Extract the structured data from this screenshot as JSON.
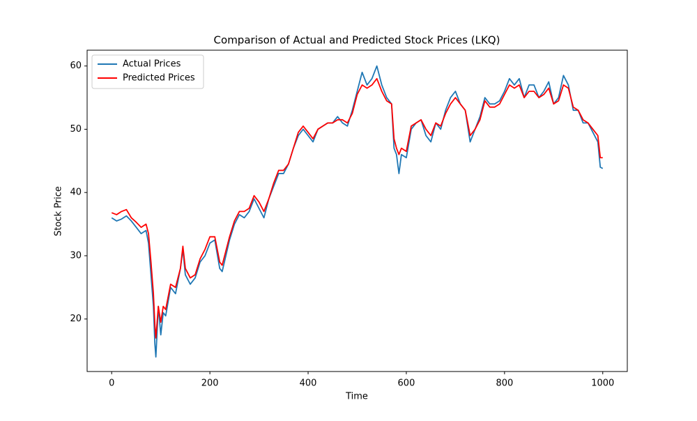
{
  "chart_data": {
    "type": "line",
    "title": "Comparison of Actual and Predicted Stock Prices (LKQ)",
    "x_label": "Time",
    "y_label": "Stock Price",
    "x": [
      0,
      10,
      20,
      30,
      40,
      50,
      60,
      70,
      75,
      80,
      85,
      88,
      90,
      95,
      100,
      105,
      110,
      120,
      130,
      140,
      145,
      150,
      160,
      170,
      180,
      190,
      200,
      210,
      220,
      225,
      240,
      250,
      260,
      270,
      280,
      290,
      300,
      310,
      320,
      330,
      340,
      350,
      360,
      370,
      380,
      390,
      400,
      410,
      420,
      430,
      440,
      450,
      460,
      470,
      480,
      490,
      500,
      510,
      520,
      530,
      540,
      550,
      560,
      570,
      575,
      580,
      585,
      590,
      600,
      610,
      620,
      630,
      640,
      650,
      660,
      670,
      680,
      690,
      700,
      710,
      720,
      730,
      740,
      750,
      760,
      770,
      780,
      790,
      800,
      810,
      820,
      830,
      840,
      850,
      860,
      870,
      880,
      890,
      900,
      910,
      920,
      930,
      940,
      950,
      960,
      970,
      980,
      990,
      995,
      1000
    ],
    "series": [
      {
        "name": "Actual Prices",
        "color": "#1f77b4",
        "values": [
          36,
          35.5,
          35.8,
          36.3,
          35.5,
          34.5,
          33.5,
          34,
          32,
          27,
          22,
          16,
          14,
          22,
          17.5,
          21,
          20.5,
          25,
          24,
          28,
          31,
          27,
          25.5,
          26.5,
          29,
          30,
          32,
          32.5,
          28,
          27.5,
          32.5,
          35,
          36.5,
          36,
          37,
          39,
          37.5,
          36,
          39,
          41,
          43,
          43,
          44.5,
          47,
          49,
          50,
          49,
          48,
          50,
          50.5,
          51,
          51,
          52,
          51,
          50.5,
          53,
          56,
          59,
          57,
          58,
          60,
          57,
          55,
          54,
          47,
          46,
          43,
          46,
          45.5,
          50,
          51,
          51.5,
          49,
          48,
          51,
          50,
          53,
          55,
          56,
          54,
          53,
          48,
          50,
          52,
          55,
          54,
          54,
          54.5,
          56,
          58,
          57,
          58,
          55,
          57,
          57,
          55,
          56,
          57.5,
          54,
          55,
          58.5,
          57,
          53,
          53,
          51,
          51,
          49.5,
          48,
          44,
          43.8
        ]
      },
      {
        "name": "Predicted Prices",
        "color": "#ff0000",
        "values": [
          36.8,
          36.5,
          37,
          37.3,
          36,
          35.3,
          34.5,
          35,
          33.5,
          29,
          24,
          19,
          17,
          22,
          19.5,
          22,
          21.5,
          25.5,
          25,
          28,
          31.5,
          28,
          26.5,
          27,
          29.5,
          31,
          33,
          33,
          29,
          28.5,
          33,
          35.5,
          37,
          37,
          37.5,
          39.5,
          38.5,
          37,
          39,
          41.5,
          43.5,
          43.5,
          44.5,
          47,
          49.5,
          50.5,
          49.5,
          48.5,
          50,
          50.5,
          51,
          51,
          51.5,
          51.5,
          51,
          52.5,
          55.5,
          57,
          56.5,
          57,
          58,
          56,
          54.5,
          54,
          48.5,
          47,
          46,
          47,
          46.5,
          50.5,
          51,
          51.5,
          50,
          49,
          51,
          50.5,
          52.5,
          54,
          55,
          54,
          53,
          49,
          50,
          51.5,
          54.5,
          53.5,
          53.5,
          54,
          55.5,
          57,
          56.5,
          57,
          55,
          56,
          56,
          55,
          55.5,
          56.5,
          54,
          54.5,
          57,
          56.5,
          53.5,
          53,
          51.5,
          51,
          50,
          49,
          45.5,
          45.5
        ]
      }
    ],
    "xlim": [
      -50,
      1050
    ],
    "ylim": [
      11.7,
      62.5
    ],
    "xticks": [
      0,
      200,
      400,
      600,
      800,
      1000
    ],
    "yticks": [
      20,
      30,
      40,
      50,
      60
    ],
    "legend": "upper left"
  }
}
